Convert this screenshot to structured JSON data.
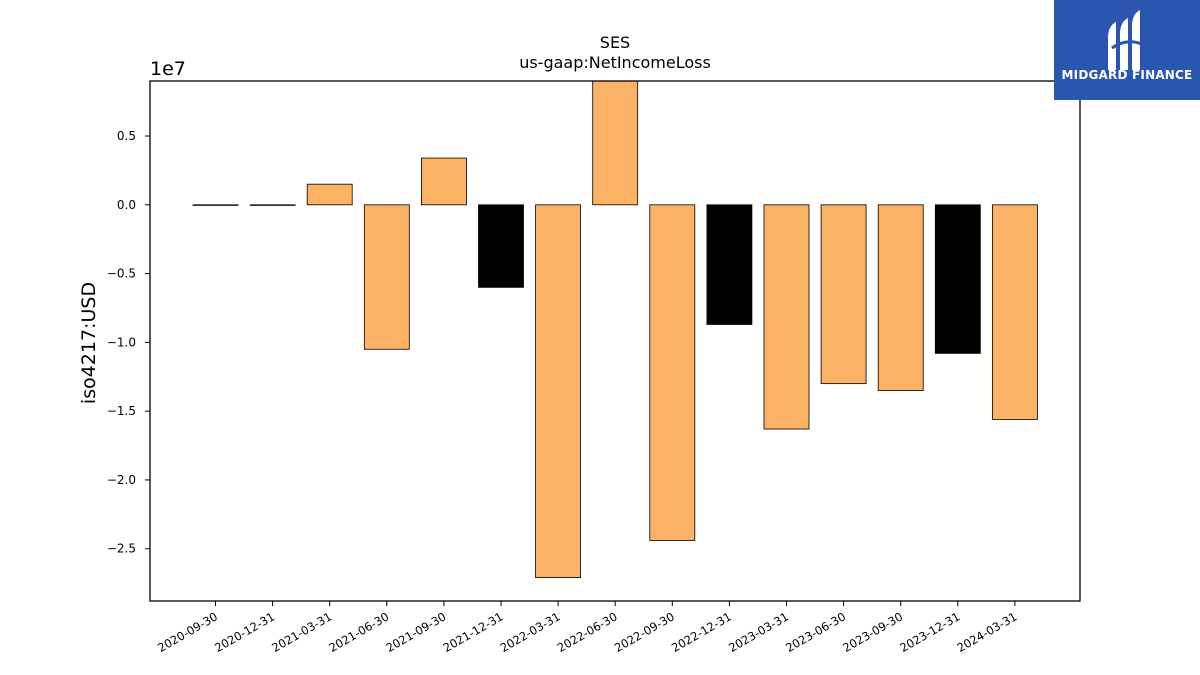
{
  "title": "SES",
  "subtitle": "us-gaap:NetIncomeLoss",
  "logo": {
    "text": "MIDGARD FINANCE",
    "color": "#2a56b0",
    "icon": "midgard-logo-icon"
  },
  "chart_data": {
    "type": "bar",
    "title": "SES",
    "subtitle": "us-gaap:NetIncomeLoss",
    "xlabel": "",
    "ylabel": "iso4217:USD",
    "scale_label": "1e7",
    "ylim": [
      -2.88,
      0.9
    ],
    "yticks": [
      0.5,
      0.0,
      -0.5,
      -1.0,
      -1.5,
      -2.0,
      -2.5
    ],
    "ytick_labels": [
      "0.5",
      "0.0",
      "−0.5",
      "−1.0",
      "−1.5",
      "−2.0",
      "−2.5"
    ],
    "categories": [
      "2020-09-30",
      "2020-12-31",
      "2021-03-31",
      "2021-06-30",
      "2021-09-30",
      "2021-12-31",
      "2022-03-31",
      "2022-06-30",
      "2022-09-30",
      "2022-12-31",
      "2023-03-31",
      "2023-06-30",
      "2023-09-30",
      "2023-12-31",
      "2024-03-31"
    ],
    "values": [
      0.0,
      0.0,
      0.15,
      -1.05,
      0.34,
      -0.6,
      -2.71,
      0.92,
      -2.44,
      -0.87,
      -1.63,
      -1.3,
      -1.35,
      -1.08,
      -1.56
    ],
    "colors": [
      "#fbb264",
      "#fbb264",
      "#fbb264",
      "#fbb264",
      "#fbb264",
      "#000000",
      "#fbb264",
      "#fbb264",
      "#fbb264",
      "#000000",
      "#fbb264",
      "#fbb264",
      "#fbb264",
      "#000000",
      "#fbb264"
    ],
    "grid": false
  }
}
